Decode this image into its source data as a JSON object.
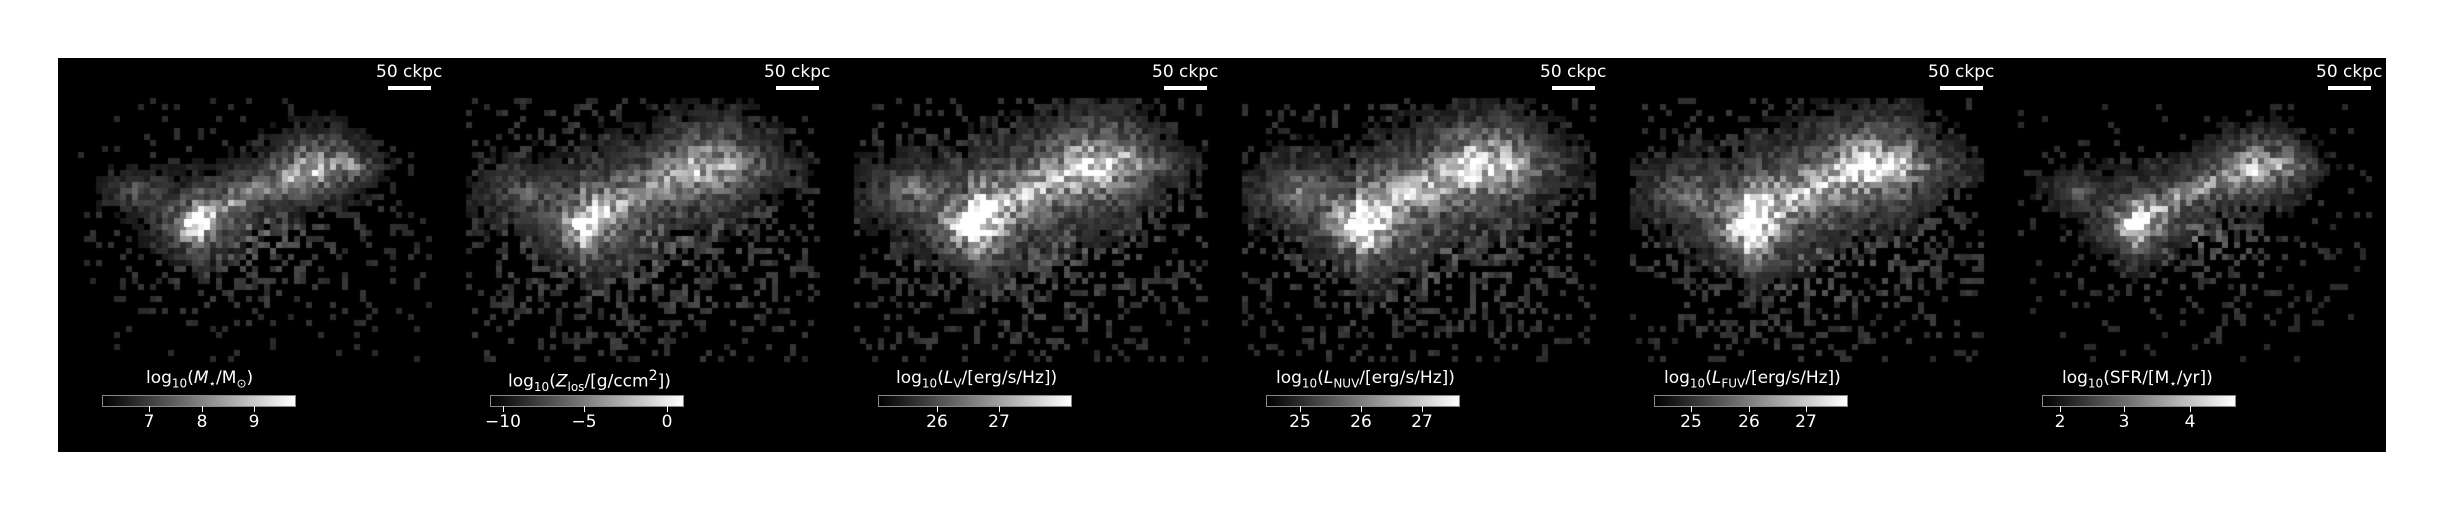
{
  "figure": {
    "panels": [
      {
        "id": "stellar-mass",
        "scalebar": "50 ckpc",
        "colorbar": {
          "label_prefix": "log",
          "label_sub": "10",
          "label_open": "(",
          "quantity": "M",
          "quantity_sub": "⋆",
          "label_rest": "/M",
          "rest_sub": "⊙",
          "label_close": ")",
          "ticks": [
            "7",
            "8",
            "9"
          ]
        }
      },
      {
        "id": "metallicity",
        "scalebar": "50 ckpc",
        "colorbar": {
          "label_prefix": "log",
          "label_sub": "10",
          "label_open": "(",
          "quantity": "Z",
          "quantity_sub": "los",
          "label_rest": "/[g/ccm",
          "rest_sub": "2",
          "label_close": "])",
          "ticks": [
            "−10",
            "−5",
            "0"
          ]
        }
      },
      {
        "id": "v-luminosity",
        "scalebar": "50 ckpc",
        "colorbar": {
          "label_prefix": "log",
          "label_sub": "10",
          "label_open": "(",
          "quantity": "L",
          "quantity_sub": "V",
          "label_rest": "/[erg/s/Hz])",
          "rest_sub": "",
          "label_close": "",
          "ticks": [
            "26",
            "27"
          ]
        }
      },
      {
        "id": "nuv-luminosity",
        "scalebar": "50 ckpc",
        "colorbar": {
          "label_prefix": "log",
          "label_sub": "10",
          "label_open": "(",
          "quantity": "L",
          "quantity_sub": "NUV",
          "label_rest": "/[erg/s/Hz])",
          "rest_sub": "",
          "label_close": "",
          "ticks": [
            "25",
            "26",
            "27"
          ]
        }
      },
      {
        "id": "fuv-luminosity",
        "scalebar": "50 ckpc",
        "colorbar": {
          "label_prefix": "log",
          "label_sub": "10",
          "label_open": "(",
          "quantity": "L",
          "quantity_sub": "FUV",
          "label_rest": "/[erg/s/Hz])",
          "rest_sub": "",
          "label_close": "",
          "ticks": [
            "25",
            "26",
            "27"
          ]
        }
      },
      {
        "id": "sfr",
        "scalebar": "50 ckpc",
        "colorbar": {
          "label_prefix": "log",
          "label_sub": "10",
          "label_open": "(SFR/[",
          "quantity": "M",
          "quantity_sub": "⋆",
          "label_rest": "/yr])",
          "rest_sub": "",
          "label_close": "",
          "ticks": [
            "2",
            "3",
            "4"
          ]
        }
      }
    ],
    "colors": {
      "background": "#000000",
      "foreground": "#ffffff"
    }
  }
}
